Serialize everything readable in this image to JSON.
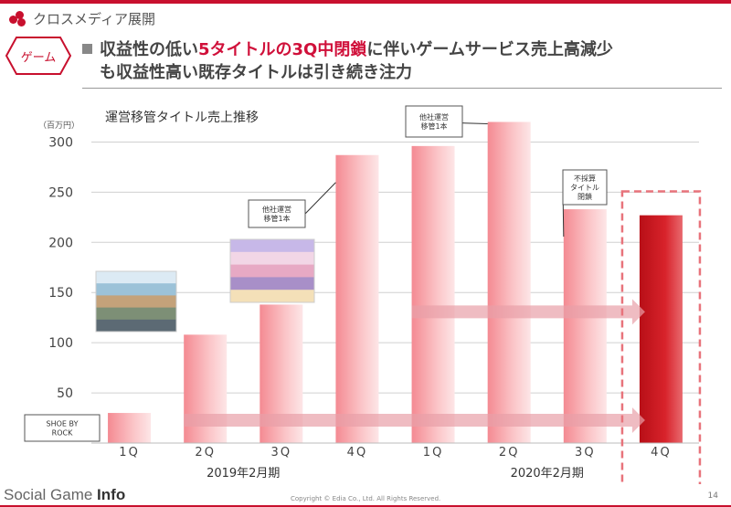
{
  "section": {
    "title": "クロスメディア展開"
  },
  "tag": {
    "label": "ゲーム"
  },
  "headline": {
    "pre": "収益性の低い",
    "accent": "5タイトルの3Q中閉鎖",
    "post": "に伴いゲームサービス売上高減少",
    "line2": "も収益性高い既存タイトルは引き続き注力"
  },
  "colors": {
    "brand": "#c8102e",
    "bar_light": "#f7a3a8",
    "bar_dark": "#c8151b",
    "arrow": "#e8a0a8"
  },
  "chart_data": {
    "type": "bar",
    "title": "運営移管タイトル売上推移",
    "ylabel": "（百万円）",
    "categories": [
      "1Q",
      "2Q",
      "3Q",
      "4Q",
      "1Q",
      "2Q",
      "3Q",
      "4Q"
    ],
    "values": [
      30,
      108,
      138,
      287,
      296,
      320,
      233,
      227
    ],
    "ylim": [
      0,
      325
    ],
    "yticks": [
      50,
      100,
      150,
      200,
      250,
      300
    ],
    "grid": true,
    "highlight_index": 7,
    "year_groups": [
      {
        "label": "2019年2月期",
        "from": 0,
        "to": 3
      },
      {
        "label": "2020年2月期",
        "from": 4,
        "to": 7
      }
    ],
    "annotations": [
      {
        "text": "SHOE BY ROCK",
        "bar": 0
      },
      {
        "text": "他社運営 移管1本",
        "bar": 3
      },
      {
        "text": "他社運営 移管1本",
        "bar": 5
      },
      {
        "text": "不採算 タイトル 閉鎖",
        "bar": 6
      }
    ],
    "arrows": [
      {
        "value": 30,
        "from": 1,
        "to": 7
      },
      {
        "value": 138,
        "from": 4,
        "to": 7
      }
    ]
  },
  "footer": {
    "logo_main": "Social Game ",
    "logo_bold": "Info",
    "copyright": "Copyright © Edia Co., Ltd. All Rights Reserved.",
    "page": "14"
  }
}
